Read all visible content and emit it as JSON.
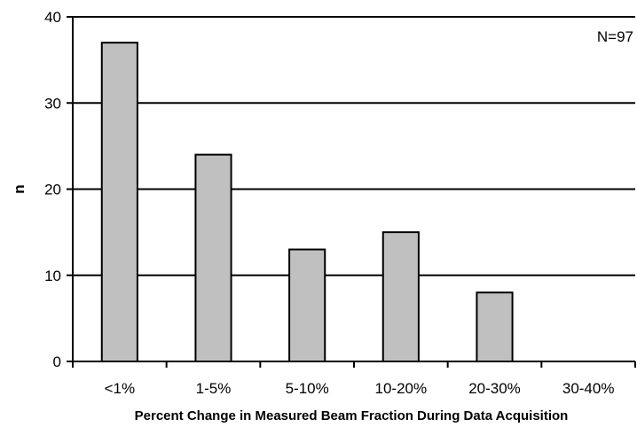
{
  "chart_data": {
    "type": "bar",
    "categories": [
      "<1%",
      "1-5%",
      "5-10%",
      "10-20%",
      "20-30%",
      "30-40%"
    ],
    "values": [
      37,
      24,
      13,
      15,
      8,
      0
    ],
    "xlabel": "Percent Change in Measured Beam Fraction During Data Acquisition",
    "ylabel": "n",
    "ylim": [
      0,
      40
    ],
    "yticks": [
      0,
      10,
      20,
      30,
      40
    ],
    "annotation": "N=97",
    "grid": "horizontal major gridlines",
    "legend": "none",
    "bar_color": "#c0c0c0",
    "bar_edge_color": "#000000"
  }
}
